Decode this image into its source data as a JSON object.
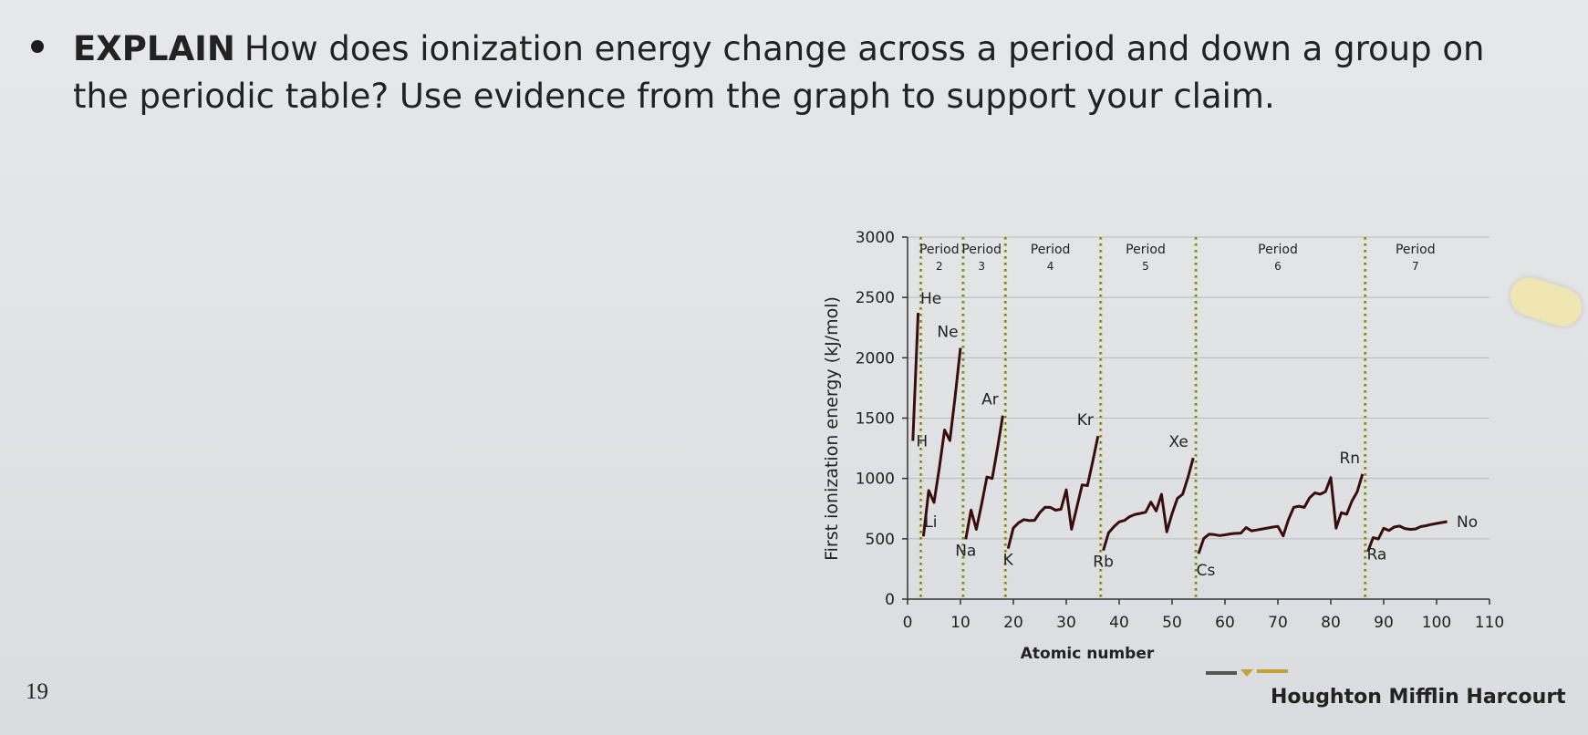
{
  "question": {
    "keyword": "EXPLAIN",
    "text": "How does ionization energy change across a period and down a group on the periodic table? Use evidence from the graph to support your claim."
  },
  "page_number": "19",
  "publisher": "Houghton Mifflin Harcourt",
  "colors": {
    "line": "#3a0d0d",
    "grid": "#b9bcbf",
    "period_divider": "#b7b83a"
  },
  "chart_data": {
    "type": "line",
    "xlabel": "Atomic number",
    "ylabel": "First ionization energy (kJ/mol)",
    "xlim": [
      0,
      110
    ],
    "ylim": [
      0,
      3000
    ],
    "x_ticks": [
      0,
      10,
      20,
      30,
      40,
      50,
      60,
      70,
      80,
      90,
      100,
      110
    ],
    "y_ticks": [
      0,
      500,
      1000,
      1500,
      2000,
      2500,
      3000
    ],
    "grid": true,
    "period_boundaries": [
      2,
      10,
      18,
      36,
      54,
      86
    ],
    "periods": [
      {
        "label_top": "Period",
        "label_num": "2",
        "x": 6
      },
      {
        "label_top": "Period",
        "label_num": "3",
        "x": 14
      },
      {
        "label_top": "Period",
        "label_num": "4",
        "x": 27
      },
      {
        "label_top": "Period",
        "label_num": "5",
        "x": 45
      },
      {
        "label_top": "Period",
        "label_num": "6",
        "x": 70
      },
      {
        "label_top": "Period",
        "label_num": "7",
        "x": 96
      }
    ],
    "element_labels": [
      {
        "text": "He",
        "x": 2,
        "y": 2372
      },
      {
        "text": "Ne",
        "x": 10,
        "y": 2081
      },
      {
        "text": "Ar",
        "x": 18,
        "y": 1521
      },
      {
        "text": "Kr",
        "x": 36,
        "y": 1351
      },
      {
        "text": "Xe",
        "x": 54,
        "y": 1170
      },
      {
        "text": "Rn",
        "x": 86,
        "y": 1037
      },
      {
        "text": "H",
        "x": 1,
        "y": 1312
      },
      {
        "text": "Li",
        "x": 3,
        "y": 520
      },
      {
        "text": "Na",
        "x": 11,
        "y": 496
      },
      {
        "text": "K",
        "x": 19,
        "y": 419
      },
      {
        "text": "Rb",
        "x": 37,
        "y": 403
      },
      {
        "text": "Cs",
        "x": 55,
        "y": 376
      },
      {
        "text": "Ra",
        "x": 88,
        "y": 509
      },
      {
        "text": "No",
        "x": 102,
        "y": 642
      }
    ],
    "series": [
      {
        "x": [
          1,
          2,
          3,
          4,
          5,
          6,
          7,
          8,
          9,
          10,
          11,
          12,
          13,
          14,
          15,
          16,
          17,
          18,
          19,
          20,
          21,
          22,
          23,
          24,
          25,
          26,
          27,
          28,
          29,
          30,
          31,
          32,
          33,
          34,
          35,
          36,
          37,
          38,
          39,
          40,
          41,
          42,
          43,
          44,
          45,
          46,
          47,
          48,
          49,
          50,
          51,
          52,
          53,
          54,
          55,
          56,
          57,
          58,
          59,
          60,
          61,
          62,
          63,
          64,
          65,
          66,
          67,
          68,
          69,
          70,
          71,
          72,
          73,
          74,
          75,
          76,
          77,
          78,
          79,
          80,
          81,
          82,
          83,
          84,
          85,
          86,
          87,
          88,
          89,
          90,
          91,
          92,
          93,
          94,
          95,
          96,
          97,
          98,
          99,
          100,
          101,
          102
        ],
        "y": [
          1312,
          2372,
          520,
          900,
          801,
          1086,
          1402,
          1314,
          1681,
          2081,
          496,
          738,
          578,
          787,
          1012,
          1000,
          1251,
          1521,
          419,
          590,
          633,
          659,
          651,
          653,
          717,
          762,
          760,
          737,
          745,
          906,
          579,
          762,
          947,
          941,
          1140,
          1351,
          403,
          550,
          600,
          640,
          652,
          684,
          702,
          710,
          720,
          804,
          731,
          868,
          558,
          709,
          834,
          869,
          1008,
          1170,
          376,
          503,
          538,
          534,
          527,
          533,
          540,
          545,
          547,
          593,
          566,
          573,
          581,
          589,
          597,
          603,
          524,
          659,
          761,
          770,
          760,
          840,
          880,
          870,
          890,
          1007,
          589,
          716,
          703,
          812,
          890,
          1037,
          393,
          509,
          499,
          587,
          568,
          598,
          605,
          585,
          578,
          581,
          601,
          608,
          619,
          627,
          635,
          642
        ]
      }
    ]
  }
}
